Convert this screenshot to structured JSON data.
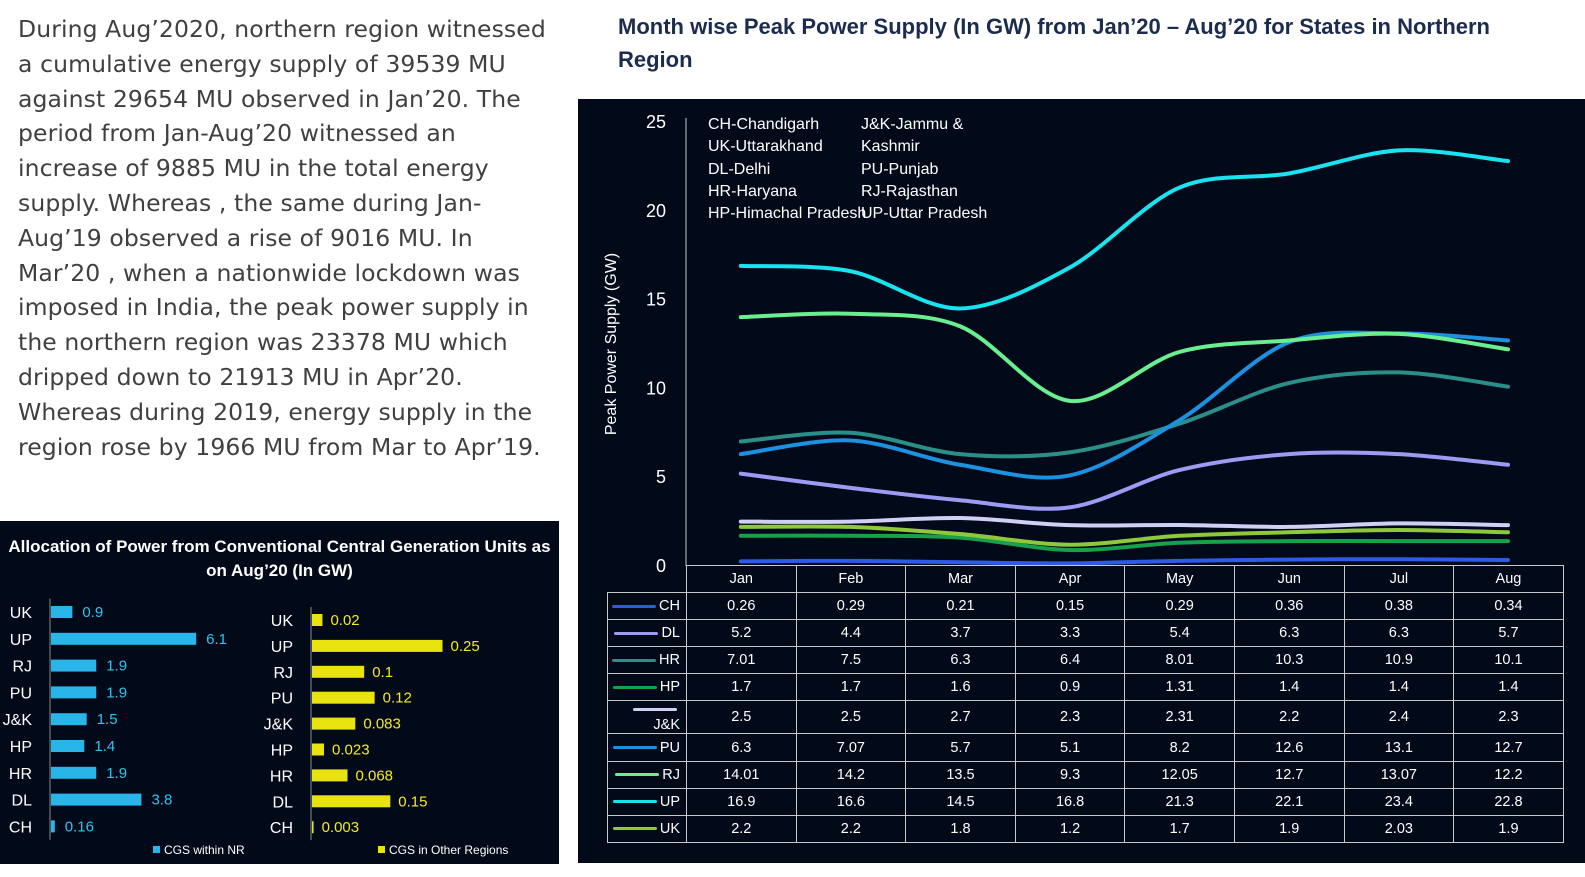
{
  "summary_text": "During Aug’2020, northern region witnessed a cumulative energy supply of  39539 MU against 29654 MU observed in Jan’20. The period from Jan-Aug’20 witnessed an increase of 9885 MU in the total energy supply. Whereas , the same during Jan-Aug’19 observed a rise of 9016 MU. In Mar’20 , when a nationwide lockdown was imposed in India, the peak  power supply in the northern region was 23378 MU which dripped down to 21913 MU in Apr’20. Whereas during 2019, energy supply in the region rose by 1966 MU from Mar to Apr’19.",
  "chart_data": [
    {
      "type": "line",
      "title": "Month wise Peak Power Supply (In GW) from Jan’20 – Aug’20 for States in Northern Region",
      "ylabel": "Peak Power Supply (GW)",
      "xlabel": "",
      "ylim": [
        0,
        25
      ],
      "yticks": [
        "0",
        "5",
        "10",
        "15",
        "20",
        "25"
      ],
      "grid": false,
      "legend_placement": "top-left",
      "legend_text": [
        "CH-Chandigarh",
        "UK-Uttarakhand",
        "DL-Delhi",
        "HR-Haryana",
        "HP-Himachal Pradesh",
        "J&K-Jammu &",
        "Kashmir",
        "PU-Punjab",
        "RJ-Rajasthan",
        "UP-Uttar Pradesh"
      ],
      "categories": [
        "Jan",
        "Feb",
        "Mar",
        "Apr",
        "May",
        "Jun",
        "Jul",
        "Aug"
      ],
      "series": [
        {
          "name": "CH",
          "color": "#2e5be6",
          "values": [
            0.26,
            0.29,
            0.21,
            0.15,
            0.29,
            0.36,
            0.38,
            0.34
          ],
          "labels": [
            "0.26",
            "0.29",
            "0.21",
            "0.15",
            "0.29",
            "0.36",
            "0.38",
            "0.34"
          ]
        },
        {
          "name": "DL",
          "color": "#9b9bf3",
          "values": [
            5.2,
            4.4,
            3.7,
            3.3,
            5.4,
            6.3,
            6.3,
            5.7
          ],
          "labels": [
            "5.2",
            "4.4",
            "3.7",
            "3.3",
            "5.4",
            "6.3",
            "6.3",
            "5.7"
          ]
        },
        {
          "name": "HR",
          "color": "#2a8f89",
          "values": [
            7.01,
            7.5,
            6.3,
            6.4,
            8.01,
            10.3,
            10.9,
            10.1
          ],
          "labels": [
            "7.01",
            "7.5",
            "6.3",
            "6.4",
            "8.01",
            "10.3",
            "10.9",
            "10.1"
          ]
        },
        {
          "name": "HP",
          "color": "#18a14c",
          "values": [
            1.7,
            1.7,
            1.6,
            0.9,
            1.31,
            1.4,
            1.4,
            1.4
          ],
          "labels": [
            "1.7",
            "1.7",
            "1.6",
            "0.9",
            "1.31",
            "1.4",
            "1.4",
            "1.4"
          ]
        },
        {
          "name": "J&K",
          "color": "#d0d0f5",
          "values": [
            2.5,
            2.5,
            2.7,
            2.3,
            2.31,
            2.2,
            2.4,
            2.3
          ],
          "labels": [
            "2.5",
            "2.5",
            "2.7",
            "2.3",
            "2.31",
            "2.2",
            "2.4",
            "2.3"
          ]
        },
        {
          "name": "PU",
          "color": "#1c91e0",
          "values": [
            6.3,
            7.07,
            5.7,
            5.1,
            8.2,
            12.6,
            13.1,
            12.7
          ],
          "labels": [
            "6.3",
            "7.07",
            "5.7",
            "5.1",
            "8.2",
            "12.6",
            "13.1",
            "12.7"
          ]
        },
        {
          "name": "RJ",
          "color": "#69ef8f",
          "values": [
            14.01,
            14.2,
            13.5,
            9.3,
            12.05,
            12.7,
            13.07,
            12.2
          ],
          "labels": [
            "14.01",
            "14.2",
            "13.5",
            "9.3",
            "12.05",
            "12.7",
            "13.07",
            "12.2"
          ]
        },
        {
          "name": "UP",
          "color": "#19e3ef",
          "values": [
            16.9,
            16.6,
            14.5,
            16.8,
            21.3,
            22.1,
            23.4,
            22.8
          ],
          "labels": [
            "16.9",
            "16.6",
            "14.5",
            "16.8",
            "21.3",
            "22.1",
            "23.4",
            "22.8"
          ]
        },
        {
          "name": "UK",
          "color": "#8ec83c",
          "values": [
            2.2,
            2.2,
            1.8,
            1.2,
            1.7,
            1.9,
            2.03,
            1.9
          ],
          "labels": [
            "2.2",
            "2.2",
            "1.8",
            "1.2",
            "1.7",
            "1.9",
            "2.03",
            "1.9"
          ]
        }
      ]
    },
    {
      "type": "bar",
      "orientation": "horizontal",
      "title": "Allocation of Power from Conventional Central Generation Units as on Aug’20 (In GW)",
      "panels": [
        {
          "name": "CGS within NR",
          "color": "#29b5e8",
          "label_color": "#29c6ef",
          "categories": [
            "UK",
            "UP",
            "RJ",
            "PU",
            "J&K",
            "HP",
            "HR",
            "DL",
            "CH"
          ],
          "values": [
            0.9,
            6.1,
            1.9,
            1.9,
            1.5,
            1.4,
            1.9,
            3.8,
            0.16
          ],
          "labels": [
            "0.9",
            "6.1",
            "1.9",
            "1.9",
            "1.5",
            "1.4",
            "1.9",
            "3.8",
            "0.16"
          ]
        },
        {
          "name": "CGS in Other Regions",
          "color": "#e8e20e",
          "label_color": "#f2eb1d",
          "categories": [
            "UK",
            "UP",
            "RJ",
            "PU",
            "J&K",
            "HP",
            "HR",
            "DL",
            "CH"
          ],
          "values": [
            0.02,
            0.25,
            0.1,
            0.12,
            0.083,
            0.023,
            0.068,
            0.15,
            0.003
          ],
          "labels": [
            "0.02",
            "0.25",
            "0.1",
            "0.12",
            "0.083",
            "0.023",
            "0.068",
            "0.15",
            "0.003"
          ]
        }
      ]
    }
  ]
}
